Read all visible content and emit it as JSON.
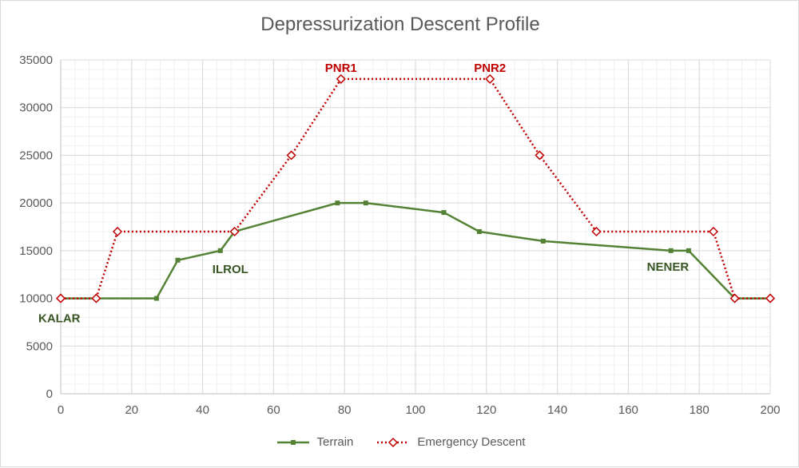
{
  "chart_data": {
    "type": "line",
    "title": "Depressurization Descent Profile",
    "xlim": [
      0,
      200
    ],
    "ylim": [
      0,
      35000
    ],
    "x_ticks": [
      0,
      20,
      40,
      60,
      80,
      100,
      120,
      140,
      160,
      180,
      200
    ],
    "y_ticks": [
      0,
      5000,
      10000,
      15000,
      20000,
      25000,
      30000,
      35000
    ],
    "grid": true,
    "legend_position": "bottom",
    "series": [
      {
        "name": "Terrain",
        "color": "#548235",
        "marker": "square",
        "line": "solid",
        "points": [
          [
            0,
            10000
          ],
          [
            27,
            10000
          ],
          [
            33,
            14000
          ],
          [
            45,
            15000
          ],
          [
            49,
            17000
          ],
          [
            78,
            20000
          ],
          [
            86,
            20000
          ],
          [
            108,
            19000
          ],
          [
            118,
            17000
          ],
          [
            136,
            16000
          ],
          [
            172,
            15000
          ],
          [
            177,
            15000
          ],
          [
            190,
            10000
          ],
          [
            200,
            10000
          ]
        ]
      },
      {
        "name": "Emergency Descent",
        "color": "#c00000",
        "marker": "diamond",
        "line": "dotted",
        "points": [
          [
            0,
            10000
          ],
          [
            10,
            10000
          ],
          [
            16,
            17000
          ],
          [
            49,
            17000
          ],
          [
            65,
            25000
          ],
          [
            79,
            33000
          ],
          [
            121,
            33000
          ],
          [
            135,
            25000
          ],
          [
            151,
            17000
          ],
          [
            184,
            17000
          ],
          [
            190,
            10000
          ],
          [
            200,
            10000
          ]
        ]
      }
    ],
    "annotations": [
      {
        "text": "KALAR",
        "x": 0,
        "y": 10000,
        "color": "#375623"
      },
      {
        "text": "ILROL",
        "x": 45,
        "y": 15000,
        "color": "#375623"
      },
      {
        "text": "NENER",
        "x": 172,
        "y": 15000,
        "color": "#375623"
      },
      {
        "text": "PNR1",
        "x": 79,
        "y": 33000,
        "color": "#c00000"
      },
      {
        "text": "PNR2",
        "x": 121,
        "y": 33000,
        "color": "#c00000"
      }
    ]
  }
}
